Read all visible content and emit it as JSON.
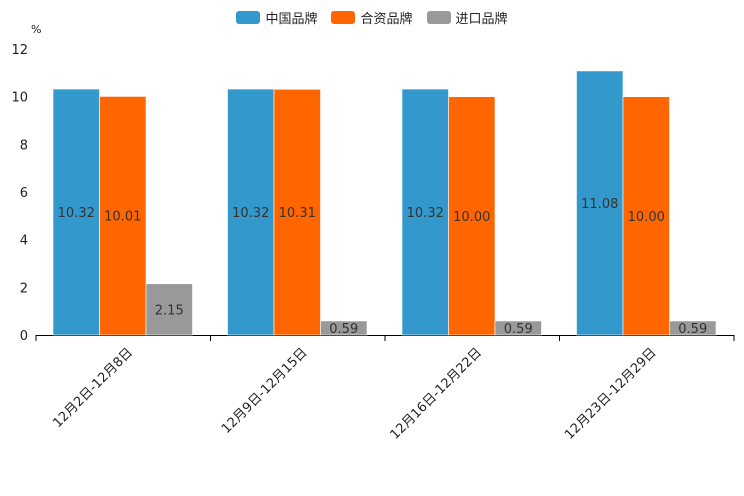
{
  "chart_data": {
    "type": "bar",
    "title": "",
    "xlabel": "",
    "ylabel": "%",
    "ylim": [
      0,
      12
    ],
    "yticks": [
      0,
      2,
      4,
      6,
      8,
      10,
      12
    ],
    "grid": false,
    "legend_position": "top-center",
    "categories": [
      "12月2日-12月8日",
      "12月9日-12月15日",
      "12月16日-12月22日",
      "12月23日-12月29日"
    ],
    "series": [
      {
        "name": "中国品牌",
        "color": "#3399cc",
        "values": [
          10.32,
          10.32,
          10.32,
          11.08
        ],
        "labels": [
          "10.32",
          "10.32",
          "10.32",
          "11.08"
        ]
      },
      {
        "name": "合资品牌",
        "color": "#ff6600",
        "values": [
          10.01,
          10.31,
          10.0,
          10.0
        ],
        "labels": [
          "10.01",
          "10.31",
          "10.00",
          "10.00"
        ]
      },
      {
        "name": "进口品牌",
        "color": "#999999",
        "values": [
          2.15,
          0.59,
          0.59,
          0.59
        ],
        "labels": [
          "2.15",
          "0.59",
          "0.59",
          "0.59"
        ]
      }
    ]
  }
}
